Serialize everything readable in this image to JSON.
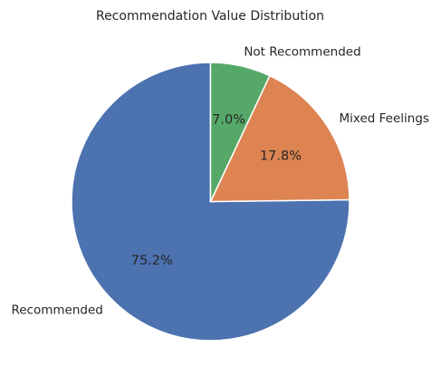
{
  "chart_data": {
    "type": "pie",
    "title": "Recommendation Value Distribution",
    "start_angle_deg": 90,
    "direction": "counterclockwise",
    "slices": [
      {
        "label": "Recommended",
        "value": 75.2,
        "pct_label": "75.2%",
        "color": "#4c72b0"
      },
      {
        "label": "Mixed Feelings",
        "value": 17.8,
        "pct_label": "17.8%",
        "color": "#dd8452"
      },
      {
        "label": "Not Recommended",
        "value": 7.0,
        "pct_label": "7.0%",
        "color": "#55a868"
      }
    ]
  }
}
